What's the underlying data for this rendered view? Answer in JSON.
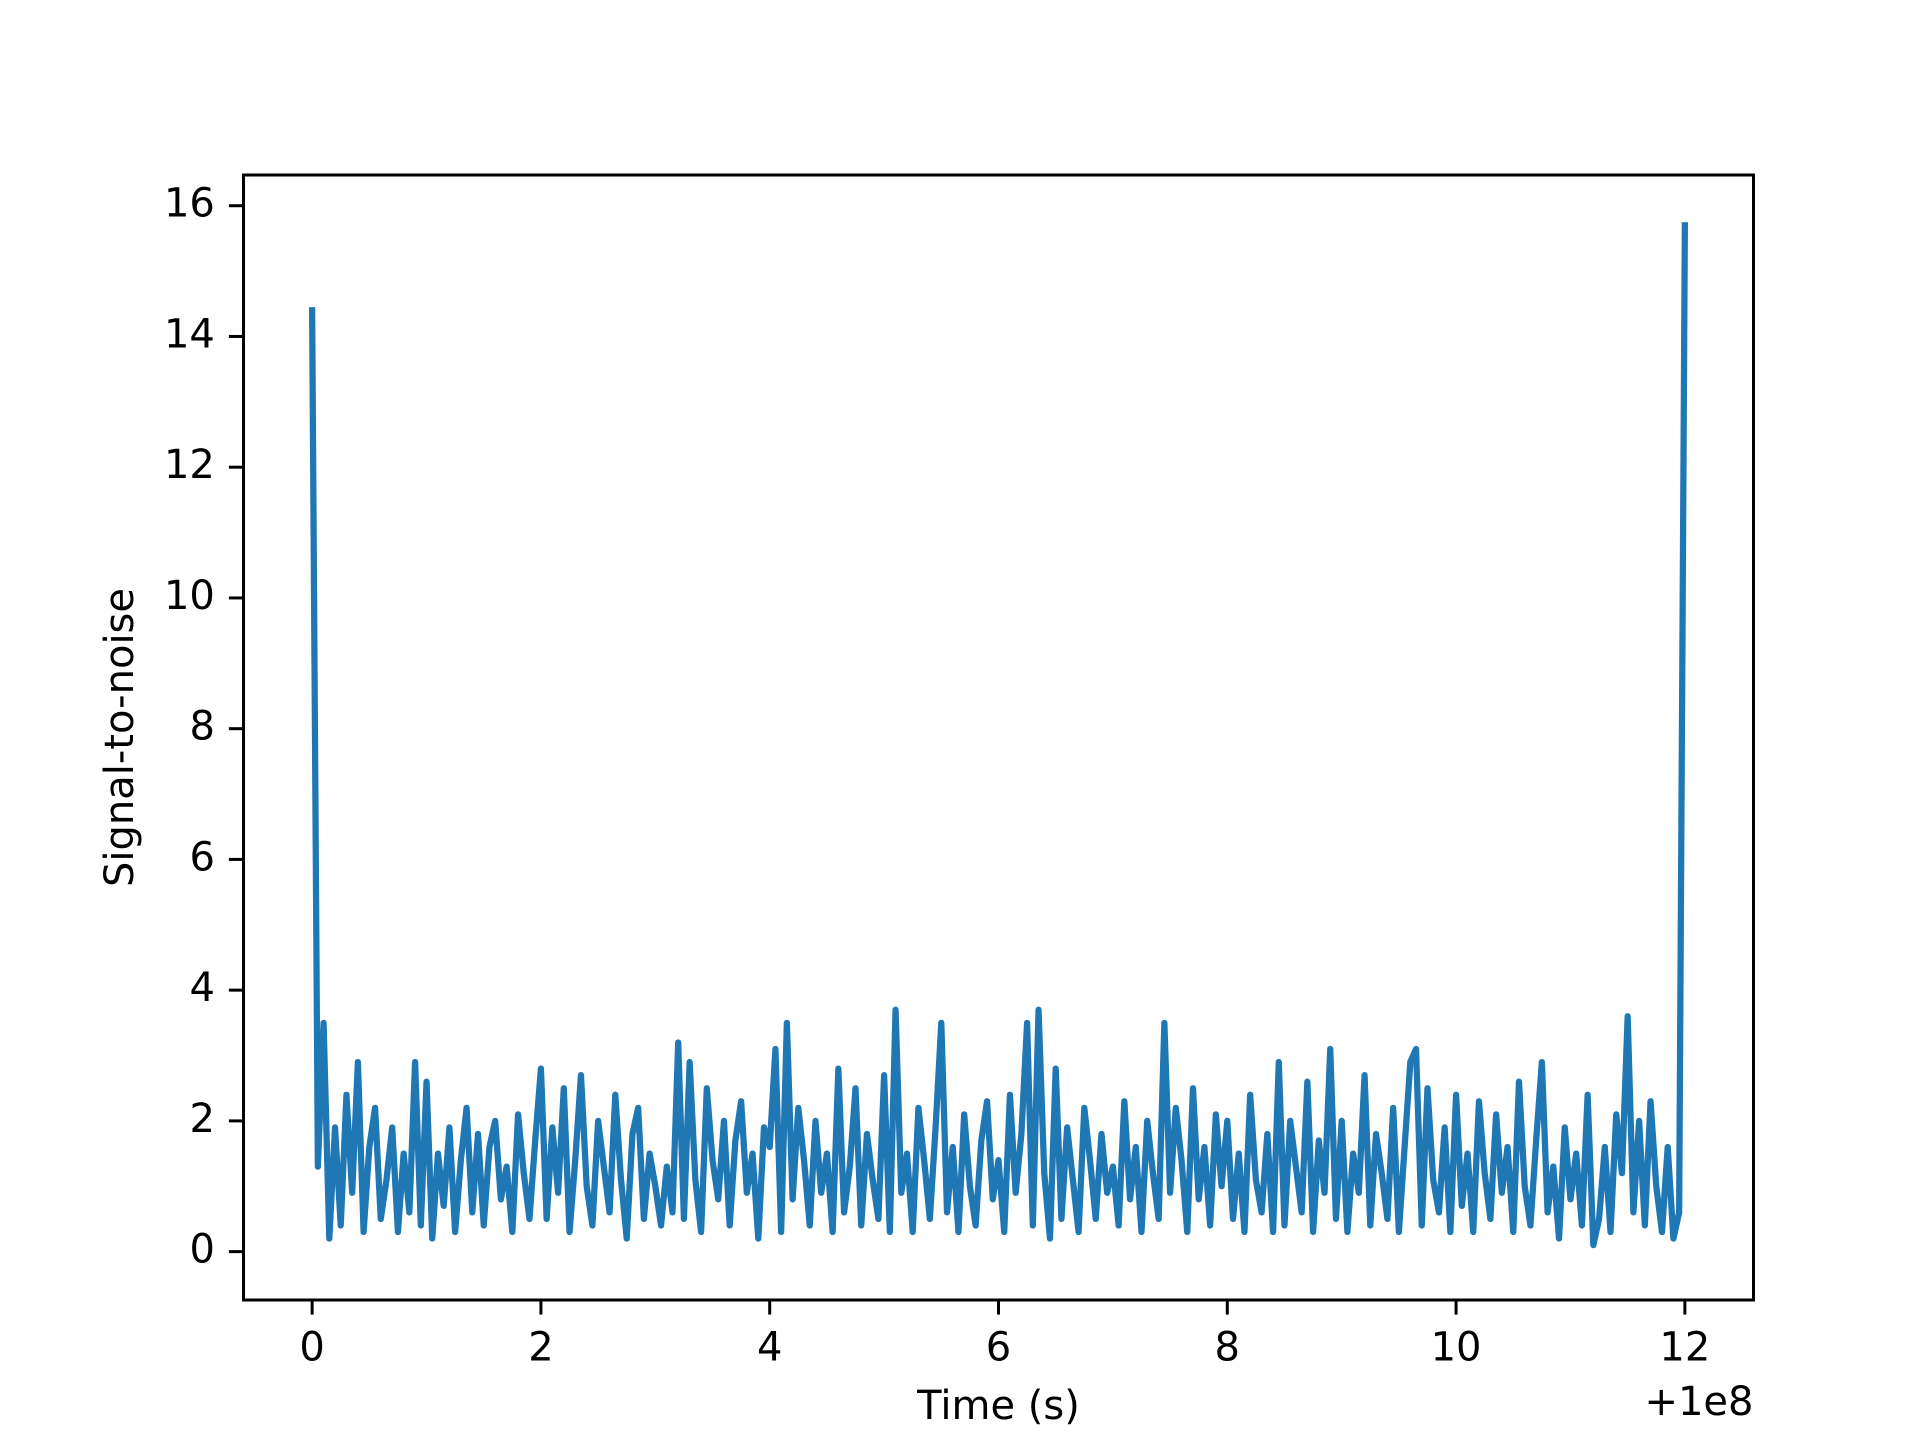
{
  "chart_data": {
    "type": "line",
    "xlabel": "Time (s)",
    "ylabel": "Signal-to-noise",
    "x_offset_label": "+1e8",
    "color": "#1f77b4",
    "xlim": [
      -0.6,
      12.6
    ],
    "ylim": [
      -0.74,
      16.47
    ],
    "xticks": [
      0,
      2,
      4,
      6,
      8,
      10,
      12
    ],
    "yticks": [
      0,
      2,
      4,
      6,
      8,
      10,
      12,
      14,
      16
    ],
    "x": [
      0,
      0.05,
      0.1,
      0.15,
      0.2,
      0.25,
      0.3,
      0.35,
      0.4,
      0.45,
      0.5,
      0.55,
      0.6,
      0.65,
      0.7,
      0.75,
      0.8,
      0.85,
      0.9,
      0.95,
      1,
      1.05,
      1.1,
      1.15,
      1.2,
      1.25,
      1.3,
      1.35,
      1.4,
      1.45,
      1.5,
      1.55,
      1.6,
      1.65,
      1.7,
      1.75,
      1.8,
      1.85,
      1.9,
      1.95,
      2,
      2.05,
      2.1,
      2.15,
      2.2,
      2.25,
      2.3,
      2.35,
      2.4,
      2.45,
      2.5,
      2.55,
      2.6,
      2.65,
      2.7,
      2.75,
      2.8,
      2.85,
      2.9,
      2.95,
      3,
      3.05,
      3.1,
      3.15,
      3.2,
      3.25,
      3.3,
      3.35,
      3.4,
      3.45,
      3.5,
      3.55,
      3.6,
      3.65,
      3.7,
      3.75,
      3.8,
      3.85,
      3.9,
      3.95,
      4,
      4.05,
      4.1,
      4.15,
      4.2,
      4.25,
      4.3,
      4.35,
      4.4,
      4.45,
      4.5,
      4.55,
      4.6,
      4.65,
      4.7,
      4.75,
      4.8,
      4.85,
      4.9,
      4.95,
      5,
      5.05,
      5.1,
      5.15,
      5.2,
      5.25,
      5.3,
      5.35,
      5.4,
      5.45,
      5.5,
      5.55,
      5.6,
      5.65,
      5.7,
      5.75,
      5.8,
      5.85,
      5.9,
      5.95,
      6,
      6.05,
      6.1,
      6.15,
      6.2,
      6.25,
      6.3,
      6.35,
      6.4,
      6.45,
      6.5,
      6.55,
      6.6,
      6.65,
      6.7,
      6.75,
      6.8,
      6.85,
      6.9,
      6.95,
      7,
      7.05,
      7.1,
      7.15,
      7.2,
      7.25,
      7.3,
      7.35,
      7.4,
      7.45,
      7.5,
      7.55,
      7.6,
      7.65,
      7.7,
      7.75,
      7.8,
      7.85,
      7.9,
      7.95,
      8,
      8.05,
      8.1,
      8.15,
      8.2,
      8.25,
      8.3,
      8.35,
      8.4,
      8.45,
      8.5,
      8.55,
      8.6,
      8.65,
      8.7,
      8.75,
      8.8,
      8.85,
      8.9,
      8.95,
      9,
      9.05,
      9.1,
      9.15,
      9.2,
      9.25,
      9.3,
      9.35,
      9.4,
      9.45,
      9.5,
      9.55,
      9.6,
      9.65,
      9.7,
      9.75,
      9.8,
      9.85,
      9.9,
      9.95,
      10,
      10.05,
      10.1,
      10.15,
      10.2,
      10.25,
      10.3,
      10.35,
      10.4,
      10.45,
      10.5,
      10.55,
      10.6,
      10.65,
      10.7,
      10.75,
      10.8,
      10.85,
      10.9,
      10.95,
      11,
      11.05,
      11.1,
      11.15,
      11.2,
      11.25,
      11.3,
      11.35,
      11.4,
      11.45,
      11.5,
      11.55,
      11.6,
      11.65,
      11.7,
      11.75,
      11.8,
      11.85,
      11.9,
      11.95,
      12
    ],
    "values": [
      14.4,
      1.3,
      3.5,
      0.2,
      1.9,
      0.4,
      2.4,
      0.9,
      2.9,
      0.3,
      1.6,
      2.2,
      0.5,
      1.1,
      1.9,
      0.3,
      1.5,
      0.6,
      2.9,
      0.4,
      2.6,
      0.2,
      1.5,
      0.7,
      1.9,
      0.3,
      1.4,
      2.2,
      0.6,
      1.8,
      0.4,
      1.6,
      2.0,
      0.8,
      1.3,
      0.3,
      2.1,
      1.2,
      0.5,
      1.7,
      2.8,
      0.5,
      1.9,
      0.9,
      2.5,
      0.3,
      1.4,
      2.7,
      1.0,
      0.4,
      2.0,
      1.3,
      0.6,
      2.4,
      1.1,
      0.2,
      1.8,
      2.2,
      0.5,
      1.5,
      1.0,
      0.4,
      1.3,
      0.6,
      3.2,
      0.5,
      2.9,
      1.1,
      0.3,
      2.5,
      1.4,
      0.8,
      2.0,
      0.4,
      1.7,
      2.3,
      0.9,
      1.5,
      0.2,
      1.9,
      1.6,
      3.1,
      0.3,
      3.5,
      0.8,
      2.2,
      1.4,
      0.4,
      2.0,
      0.9,
      1.5,
      0.3,
      2.8,
      0.6,
      1.3,
      2.5,
      0.4,
      1.8,
      1.1,
      0.5,
      2.7,
      0.3,
      3.7,
      0.9,
      1.5,
      0.3,
      2.2,
      1.4,
      0.5,
      1.9,
      3.5,
      0.6,
      1.6,
      0.3,
      2.1,
      1.0,
      0.4,
      1.7,
      2.3,
      0.8,
      1.4,
      0.3,
      2.4,
      0.9,
      1.8,
      3.5,
      0.4,
      3.7,
      1.2,
      0.2,
      2.8,
      0.5,
      1.9,
      1.1,
      0.3,
      2.2,
      1.4,
      0.5,
      1.8,
      0.9,
      1.3,
      0.4,
      2.3,
      0.8,
      1.6,
      0.3,
      2.0,
      1.2,
      0.5,
      3.5,
      0.9,
      2.2,
      1.4,
      0.3,
      2.5,
      0.8,
      1.6,
      0.4,
      2.1,
      1.0,
      2.0,
      0.5,
      1.5,
      0.3,
      2.4,
      1.1,
      0.6,
      1.8,
      0.3,
      2.9,
      0.4,
      2.0,
      1.3,
      0.6,
      2.6,
      0.3,
      1.7,
      0.9,
      3.1,
      0.5,
      2.0,
      0.3,
      1.5,
      0.9,
      2.7,
      0.4,
      1.8,
      1.2,
      0.5,
      2.2,
      0.3,
      1.6,
      2.9,
      3.1,
      0.4,
      2.5,
      1.1,
      0.6,
      1.9,
      0.3,
      2.4,
      0.7,
      1.5,
      0.3,
      2.3,
      1.2,
      0.5,
      2.1,
      0.9,
      1.6,
      0.3,
      2.6,
      1.0,
      0.4,
      1.7,
      2.9,
      0.6,
      1.3,
      0.2,
      1.9,
      0.8,
      1.5,
      0.4,
      2.4,
      0.1,
      0.5,
      1.6,
      0.3,
      2.1,
      1.2,
      3.6,
      0.6,
      2.0,
      0.4,
      2.3,
      1.0,
      0.3,
      1.6,
      0.2,
      0.6,
      15.7
    ]
  }
}
